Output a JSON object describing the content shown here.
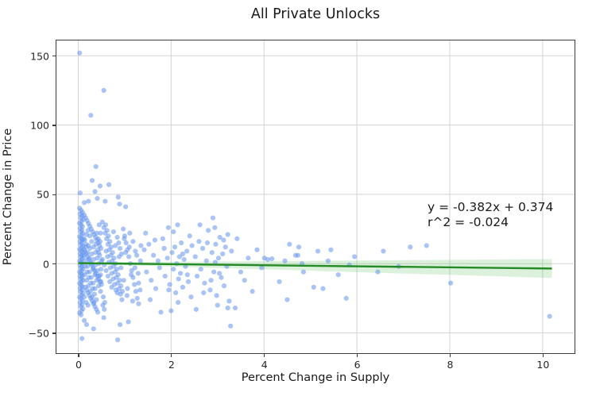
{
  "chart_data": {
    "type": "scatter",
    "title": "All Private Unlocks",
    "xlabel": "Percent Change in Supply",
    "ylabel": "Percent Change in Price",
    "xlim": [
      -0.47,
      10.67
    ],
    "ylim": [
      -64,
      161
    ],
    "grid": true,
    "legend": "none",
    "x_ticks": [
      0,
      2,
      4,
      6,
      8,
      10
    ],
    "x_tick_labels": [
      "0",
      "2",
      "4",
      "6",
      "8",
      "10"
    ],
    "y_ticks": [
      -50,
      0,
      50,
      100,
      150
    ],
    "y_tick_labels": [
      "−50",
      "0",
      "50",
      "100",
      "150"
    ],
    "annotation": {
      "line1": "y = -0.382x + 0.374",
      "line2": "r^2 = -0.024"
    },
    "regression": {
      "slope": -0.382,
      "intercept": 0.374,
      "x_start": 0.0,
      "x_end": 10.2,
      "band_halfwidth_start": 0.5,
      "band_halfwidth_end": 6.8
    },
    "colors": {
      "point": "#6495ED",
      "point_opacity": 0.55,
      "line": "#238b23",
      "band": "#5fbf5f",
      "band_opacity": 0.22,
      "grid": "#d3d3d3",
      "spine": "#3b3b3b",
      "text": "#1a1a1a"
    },
    "point_radius": 3.1,
    "points": [
      [
        0.03,
        152
      ],
      [
        0.55,
        125
      ],
      [
        0.27,
        107
      ],
      [
        0.38,
        70
      ],
      [
        0.3,
        60
      ],
      [
        0.66,
        57
      ],
      [
        0.47,
        56
      ],
      [
        0.36,
        52
      ],
      [
        0.04,
        51
      ],
      [
        0.86,
        48
      ],
      [
        0.41,
        47
      ],
      [
        0.89,
        43
      ],
      [
        1.02,
        41
      ],
      [
        0.13,
        44
      ],
      [
        0.58,
        45
      ],
      [
        0.22,
        45
      ],
      [
        0.08,
        -54
      ],
      [
        0.85,
        -55
      ],
      [
        0.18,
        -44
      ],
      [
        0.9,
        -44
      ],
      [
        0.33,
        -47
      ],
      [
        1.08,
        -42
      ],
      [
        0.13,
        -41
      ],
      [
        0.55,
        -39
      ],
      [
        0.03,
        40
      ],
      [
        0.06,
        38.5
      ],
      [
        0.09,
        37
      ],
      [
        0.04,
        35.8
      ],
      [
        0.08,
        34.5
      ],
      [
        0.05,
        33
      ],
      [
        0.1,
        31.8
      ],
      [
        0.07,
        30.5
      ],
      [
        0.03,
        29.2
      ],
      [
        0.06,
        28
      ],
      [
        0.09,
        26.8
      ],
      [
        0.04,
        25.5
      ],
      [
        0.08,
        24.2
      ],
      [
        0.05,
        23
      ],
      [
        0.1,
        21.8
      ],
      [
        0.07,
        20.6
      ],
      [
        0.03,
        19.4
      ],
      [
        0.06,
        18.2
      ],
      [
        0.09,
        17
      ],
      [
        0.04,
        15.9
      ],
      [
        0.08,
        14.8
      ],
      [
        0.05,
        13.7
      ],
      [
        0.1,
        12.6
      ],
      [
        0.07,
        11.5
      ],
      [
        0.03,
        10.4
      ],
      [
        0.06,
        9.3
      ],
      [
        0.09,
        8.2
      ],
      [
        0.04,
        7.1
      ],
      [
        0.08,
        6
      ],
      [
        0.05,
        5
      ],
      [
        0.1,
        4
      ],
      [
        0.07,
        3
      ],
      [
        0.03,
        2
      ],
      [
        0.06,
        1
      ],
      [
        0.09,
        0
      ],
      [
        0.04,
        -1
      ],
      [
        0.08,
        -2
      ],
      [
        0.05,
        -3
      ],
      [
        0.1,
        -4
      ],
      [
        0.07,
        -5
      ],
      [
        0.03,
        -6
      ],
      [
        0.06,
        -7
      ],
      [
        0.09,
        -8
      ],
      [
        0.04,
        -9
      ],
      [
        0.08,
        -10
      ],
      [
        0.05,
        -11
      ],
      [
        0.1,
        -12
      ],
      [
        0.07,
        -13
      ],
      [
        0.03,
        -14.2
      ],
      [
        0.06,
        -15.4
      ],
      [
        0.09,
        -16.6
      ],
      [
        0.04,
        -17.8
      ],
      [
        0.08,
        -19
      ],
      [
        0.05,
        -20.2
      ],
      [
        0.1,
        -21.5
      ],
      [
        0.07,
        -22.8
      ],
      [
        0.03,
        -24.1
      ],
      [
        0.06,
        -25.4
      ],
      [
        0.09,
        -26.8
      ],
      [
        0.04,
        -28.2
      ],
      [
        0.08,
        -29.6
      ],
      [
        0.05,
        -31
      ],
      [
        0.1,
        -32.5
      ],
      [
        0.07,
        -34
      ],
      [
        0.03,
        -35.5
      ],
      [
        0.06,
        -37
      ],
      [
        0.13,
        35
      ],
      [
        0.16,
        33
      ],
      [
        0.19,
        31
      ],
      [
        0.22,
        29
      ],
      [
        0.25,
        27
      ],
      [
        0.28,
        25
      ],
      [
        0.31,
        23
      ],
      [
        0.34,
        21
      ],
      [
        0.37,
        19
      ],
      [
        0.4,
        17
      ],
      [
        0.43,
        15
      ],
      [
        0.46,
        13
      ],
      [
        0.49,
        11
      ],
      [
        0.14,
        9
      ],
      [
        0.17,
        7
      ],
      [
        0.2,
        5
      ],
      [
        0.23,
        3
      ],
      [
        0.26,
        1
      ],
      [
        0.29,
        -1
      ],
      [
        0.32,
        -3
      ],
      [
        0.35,
        -5
      ],
      [
        0.38,
        -7
      ],
      [
        0.41,
        -9
      ],
      [
        0.44,
        -11
      ],
      [
        0.47,
        -13
      ],
      [
        0.5,
        -15
      ],
      [
        0.15,
        -17
      ],
      [
        0.18,
        -19
      ],
      [
        0.21,
        -21
      ],
      [
        0.24,
        -23
      ],
      [
        0.27,
        -25
      ],
      [
        0.3,
        -27
      ],
      [
        0.33,
        -29
      ],
      [
        0.36,
        -31
      ],
      [
        0.39,
        -33
      ],
      [
        0.42,
        -35
      ],
      [
        0.45,
        28
      ],
      [
        0.48,
        22
      ],
      [
        0.12,
        18
      ],
      [
        0.16,
        12
      ],
      [
        0.2,
        8
      ],
      [
        0.24,
        4
      ],
      [
        0.28,
        0
      ],
      [
        0.32,
        -4
      ],
      [
        0.36,
        -8
      ],
      [
        0.4,
        -12
      ],
      [
        0.44,
        -16
      ],
      [
        0.48,
        -20
      ],
      [
        0.13,
        -24
      ],
      [
        0.17,
        -28
      ],
      [
        0.21,
        24
      ],
      [
        0.25,
        20
      ],
      [
        0.29,
        16
      ],
      [
        0.33,
        12
      ],
      [
        0.37,
        8
      ],
      [
        0.41,
        4
      ],
      [
        0.45,
        0
      ],
      [
        0.49,
        -4
      ],
      [
        0.14,
        -8
      ],
      [
        0.18,
        -12
      ],
      [
        0.22,
        -16
      ],
      [
        0.26,
        -20
      ],
      [
        0.3,
        -24
      ],
      [
        0.34,
        -28
      ],
      [
        0.38,
        14
      ],
      [
        0.42,
        10
      ],
      [
        0.46,
        6
      ],
      [
        0.5,
        2
      ],
      [
        0.15,
        -2
      ],
      [
        0.19,
        -6
      ],
      [
        0.23,
        -10
      ],
      [
        0.27,
        -14
      ],
      [
        0.31,
        -18
      ],
      [
        0.35,
        -22
      ],
      [
        0.39,
        -26
      ],
      [
        0.43,
        18
      ],
      [
        0.47,
        16
      ],
      [
        0.12,
        6
      ],
      [
        0.16,
        2
      ],
      [
        0.2,
        -2
      ],
      [
        0.24,
        -6
      ],
      [
        0.28,
        -10
      ],
      [
        0.32,
        -14
      ],
      [
        0.36,
        -18
      ],
      [
        0.4,
        22
      ],
      [
        0.44,
        8
      ],
      [
        0.48,
        -8
      ],
      [
        0.13,
        10
      ],
      [
        0.17,
        14
      ],
      [
        0.21,
        -30
      ],
      [
        0.25,
        11
      ],
      [
        0.29,
        7
      ],
      [
        0.33,
        3
      ],
      [
        0.37,
        -1
      ],
      [
        0.41,
        -5
      ],
      [
        0.45,
        -9
      ],
      [
        0.49,
        -13
      ],
      [
        0.14,
        17
      ],
      [
        0.18,
        21
      ],
      [
        0.22,
        13
      ],
      [
        0.52,
        30
      ],
      [
        0.55,
        26
      ],
      [
        0.58,
        22
      ],
      [
        0.61,
        18
      ],
      [
        0.64,
        14
      ],
      [
        0.67,
        10
      ],
      [
        0.7,
        6
      ],
      [
        0.73,
        2
      ],
      [
        0.76,
        -2
      ],
      [
        0.79,
        -6
      ],
      [
        0.82,
        -10
      ],
      [
        0.85,
        -14
      ],
      [
        0.88,
        -18
      ],
      [
        0.91,
        -22
      ],
      [
        0.94,
        -26
      ],
      [
        0.53,
        -30
      ],
      [
        0.56,
        -33
      ],
      [
        0.59,
        28
      ],
      [
        0.62,
        24
      ],
      [
        0.65,
        20
      ],
      [
        0.68,
        16
      ],
      [
        0.71,
        12
      ],
      [
        0.74,
        8
      ],
      [
        0.77,
        4
      ],
      [
        0.8,
        0
      ],
      [
        0.83,
        -4
      ],
      [
        0.86,
        -8
      ],
      [
        0.89,
        -12
      ],
      [
        0.92,
        -16
      ],
      [
        0.95,
        -20
      ],
      [
        0.54,
        -24
      ],
      [
        0.57,
        -28
      ],
      [
        0.6,
        9
      ],
      [
        0.63,
        5
      ],
      [
        0.66,
        1
      ],
      [
        0.69,
        -3
      ],
      [
        0.72,
        -7
      ],
      [
        0.75,
        -11
      ],
      [
        0.78,
        -15
      ],
      [
        0.81,
        -19
      ],
      [
        0.84,
        19
      ],
      [
        0.87,
        15
      ],
      [
        0.9,
        11
      ],
      [
        0.93,
        7
      ],
      [
        0.52,
        3
      ],
      [
        0.56,
        -1
      ],
      [
        0.6,
        -5
      ],
      [
        0.64,
        -9
      ],
      [
        0.68,
        -13
      ],
      [
        0.72,
        -17
      ],
      [
        0.76,
        23
      ],
      [
        0.8,
        13
      ],
      [
        0.84,
        -21
      ],
      [
        0.88,
        5
      ],
      [
        0.92,
        -3
      ],
      [
        0.97,
        25
      ],
      [
        1.0,
        20
      ],
      [
        1.03,
        15
      ],
      [
        1.06,
        10
      ],
      [
        1.09,
        5
      ],
      [
        1.12,
        0
      ],
      [
        1.15,
        -5
      ],
      [
        1.18,
        -10
      ],
      [
        1.21,
        -15
      ],
      [
        1.24,
        -20
      ],
      [
        1.27,
        -25
      ],
      [
        1.3,
        -29
      ],
      [
        0.98,
        -12
      ],
      [
        1.02,
        8
      ],
      [
        1.06,
        -18
      ],
      [
        1.1,
        12
      ],
      [
        1.14,
        -8
      ],
      [
        1.18,
        16
      ],
      [
        1.22,
        -3
      ],
      [
        1.26,
        6
      ],
      [
        1.3,
        -14
      ],
      [
        1.34,
        2
      ],
      [
        0.99,
        18
      ],
      [
        1.05,
        -23
      ],
      [
        1.11,
        22
      ],
      [
        1.17,
        -27
      ],
      [
        1.23,
        9
      ],
      [
        1.29,
        -7
      ],
      [
        1.33,
        -19
      ],
      [
        1.35,
        13
      ],
      [
        1.42,
        10
      ],
      [
        1.47,
        -6
      ],
      [
        1.52,
        14
      ],
      [
        1.57,
        -12
      ],
      [
        1.62,
        6
      ],
      [
        1.67,
        -18
      ],
      [
        1.72,
        2
      ],
      [
        1.78,
        -35
      ],
      [
        1.82,
        18
      ],
      [
        1.87,
        -9
      ],
      [
        1.92,
        4
      ],
      [
        1.94,
        26
      ],
      [
        1.97,
        -15
      ],
      [
        2.0,
        -34
      ],
      [
        2.02,
        8
      ],
      [
        2.05,
        -4
      ],
      [
        2.08,
        12
      ],
      [
        2.1,
        -21
      ],
      [
        2.12,
        0
      ],
      [
        2.14,
        28
      ],
      [
        2.16,
        -11
      ],
      [
        2.18,
        5
      ],
      [
        2.2,
        -7
      ],
      [
        2.22,
        15
      ],
      [
        2.25,
        -17
      ],
      [
        2.28,
        3
      ],
      [
        2.31,
        -2
      ],
      [
        2.34,
        9
      ],
      [
        2.37,
        -13
      ],
      [
        2.4,
        20
      ],
      [
        2.43,
        -24
      ],
      [
        1.45,
        22
      ],
      [
        1.55,
        -26
      ],
      [
        1.65,
        17
      ],
      [
        1.75,
        -3
      ],
      [
        1.85,
        11
      ],
      [
        1.95,
        -19
      ],
      [
        2.05,
        23
      ],
      [
        2.15,
        -28
      ],
      [
        2.25,
        7
      ],
      [
        2.35,
        -8
      ],
      [
        2.45,
        13
      ],
      [
        2.52,
        5
      ],
      [
        2.56,
        -9
      ],
      [
        2.6,
        16
      ],
      [
        2.64,
        -4
      ],
      [
        2.68,
        11
      ],
      [
        2.72,
        -14
      ],
      [
        2.76,
        2
      ],
      [
        2.8,
        24
      ],
      [
        2.84,
        -19
      ],
      [
        2.88,
        8
      ],
      [
        2.9,
        33
      ],
      [
        2.92,
        -6
      ],
      [
        2.94,
        26
      ],
      [
        2.96,
        14
      ],
      [
        2.98,
        -23
      ],
      [
        3.0,
        -30
      ],
      [
        3.02,
        4
      ],
      [
        3.05,
        19
      ],
      [
        3.08,
        -10
      ],
      [
        3.11,
        7
      ],
      [
        3.14,
        -16
      ],
      [
        3.17,
        12
      ],
      [
        3.2,
        -2
      ],
      [
        3.22,
        21
      ],
      [
        3.25,
        -27
      ],
      [
        3.28,
        -45
      ],
      [
        3.3,
        9
      ],
      [
        2.54,
        -33
      ],
      [
        2.62,
        28
      ],
      [
        2.7,
        -21
      ],
      [
        2.78,
        15
      ],
      [
        2.86,
        -12
      ],
      [
        2.95,
        1
      ],
      [
        3.04,
        -7
      ],
      [
        3.13,
        17
      ],
      [
        3.22,
        -32
      ],
      [
        3.42,
        18
      ],
      [
        3.5,
        -6
      ],
      [
        3.58,
        -12
      ],
      [
        3.66,
        4
      ],
      [
        3.75,
        -20
      ],
      [
        3.85,
        10
      ],
      [
        3.95,
        -3
      ],
      [
        4.01,
        4
      ],
      [
        4.08,
        3
      ],
      [
        4.17,
        3.5
      ],
      [
        4.33,
        -13
      ],
      [
        4.45,
        2
      ],
      [
        4.5,
        -26
      ],
      [
        3.38,
        -32
      ],
      [
        4.55,
        14
      ],
      [
        4.68,
        6
      ],
      [
        4.73,
        6
      ],
      [
        4.75,
        12
      ],
      [
        4.82,
        0
      ],
      [
        4.85,
        -6
      ],
      [
        5.07,
        -17
      ],
      [
        5.16,
        9
      ],
      [
        5.27,
        -18
      ],
      [
        5.38,
        2
      ],
      [
        5.44,
        10
      ],
      [
        5.6,
        -8
      ],
      [
        5.77,
        -25
      ],
      [
        5.84,
        -1
      ],
      [
        5.95,
        5
      ],
      [
        6.45,
        -6
      ],
      [
        6.57,
        9
      ],
      [
        6.9,
        -2
      ],
      [
        7.15,
        12
      ],
      [
        7.5,
        13
      ],
      [
        8.02,
        -14
      ],
      [
        10.15,
        -38
      ]
    ]
  }
}
